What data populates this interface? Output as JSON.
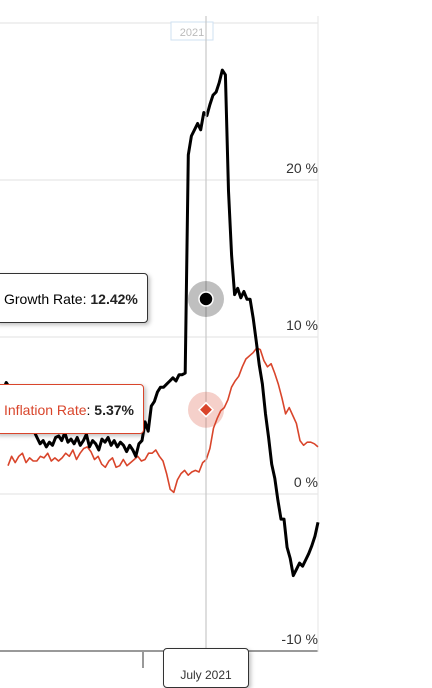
{
  "chart_data": {
    "type": "line",
    "y_axis": {
      "ticks": [
        "20 %",
        "10 %",
        "0 %",
        "-10 %"
      ],
      "range": [
        -10,
        30
      ],
      "grid": true
    },
    "x_axis": {
      "year_label": "2021"
    },
    "crosshair": {
      "label": "July 2021"
    },
    "series": [
      {
        "name": "Growth Rate",
        "color": "#000000",
        "marker": "circle",
        "values": [
          4.8,
          6.6,
          7.1,
          6.8,
          6.3,
          6.0,
          5.5,
          5.2,
          4.9,
          4.6,
          4.3,
          4.0,
          3.6,
          3.2,
          3.4,
          3.0,
          3.3,
          3.1,
          3.6,
          3.7,
          3.4,
          3.9,
          3.3,
          3.5,
          3.2,
          3.6,
          3.1,
          3.4,
          3.8,
          3.0,
          3.4,
          3.2,
          2.8,
          3.5,
          3.3,
          3.6,
          3.1,
          3.4,
          3.0,
          3.3,
          3.1,
          2.7,
          3.1,
          2.8,
          2.4,
          3.2,
          3.4,
          4.6,
          4.0,
          5.6,
          5.9,
          6.5,
          6.8,
          6.8,
          7.0,
          7.2,
          7.4,
          7.2,
          7.6,
          7.6,
          7.7,
          21.6,
          22.8,
          23.2,
          23.6,
          23.2,
          24.3,
          24.1,
          24.8,
          25.4,
          25.6,
          26.2,
          27.0,
          26.7,
          19.3,
          15.2,
          12.7,
          13.1,
          12.5,
          12.9,
          12.4,
          12.4,
          11.2,
          9.7,
          8.2,
          7.0,
          5.1,
          3.6,
          1.9,
          1.0,
          -0.4,
          -1.6,
          -1.6,
          -3.4,
          -4.1,
          -5.2,
          -4.8,
          -4.4,
          -4.6,
          -4.2,
          -3.8,
          -3.3,
          -2.7,
          -1.8
        ],
        "current": {
          "label": "Growth Rate",
          "value": "12.42%"
        }
      },
      {
        "name": "Inflation Rate",
        "color": "#d9452b",
        "marker": "diamond",
        "values": [
          1.8,
          2.4,
          2.0,
          2.4,
          2.6,
          2.0,
          2.3,
          2.1,
          2.1,
          2.4,
          2.3,
          2.6,
          2.1,
          2.3,
          2.1,
          2.3,
          2.6,
          2.4,
          2.8,
          2.2,
          2.6,
          2.9,
          3.0,
          2.7,
          2.2,
          2.4,
          1.9,
          1.7,
          2.1,
          2.3,
          1.7,
          1.8,
          2.2,
          1.8,
          2.0,
          2.2,
          2.4,
          2.1,
          2.2,
          2.6,
          2.6,
          2.8,
          2.4,
          2.1,
          1.3,
          0.3,
          0.1,
          0.9,
          1.3,
          1.5,
          1.2,
          1.4,
          1.5,
          1.4,
          2.0,
          2.2,
          2.9,
          4.2,
          4.8,
          5.3,
          5.5,
          6.0,
          6.8,
          7.2,
          7.5,
          8.1,
          8.6,
          8.8,
          9.0,
          9.3,
          9.2,
          8.5,
          8.1,
          8.3,
          7.7,
          7.0,
          6.1,
          5.1,
          5.5,
          5.0,
          4.5,
          3.4,
          3.1,
          3.3,
          3.3,
          3.2,
          3.0
        ],
        "current": {
          "label": "Inflation Rate",
          "value": "5.37%"
        }
      }
    ]
  }
}
